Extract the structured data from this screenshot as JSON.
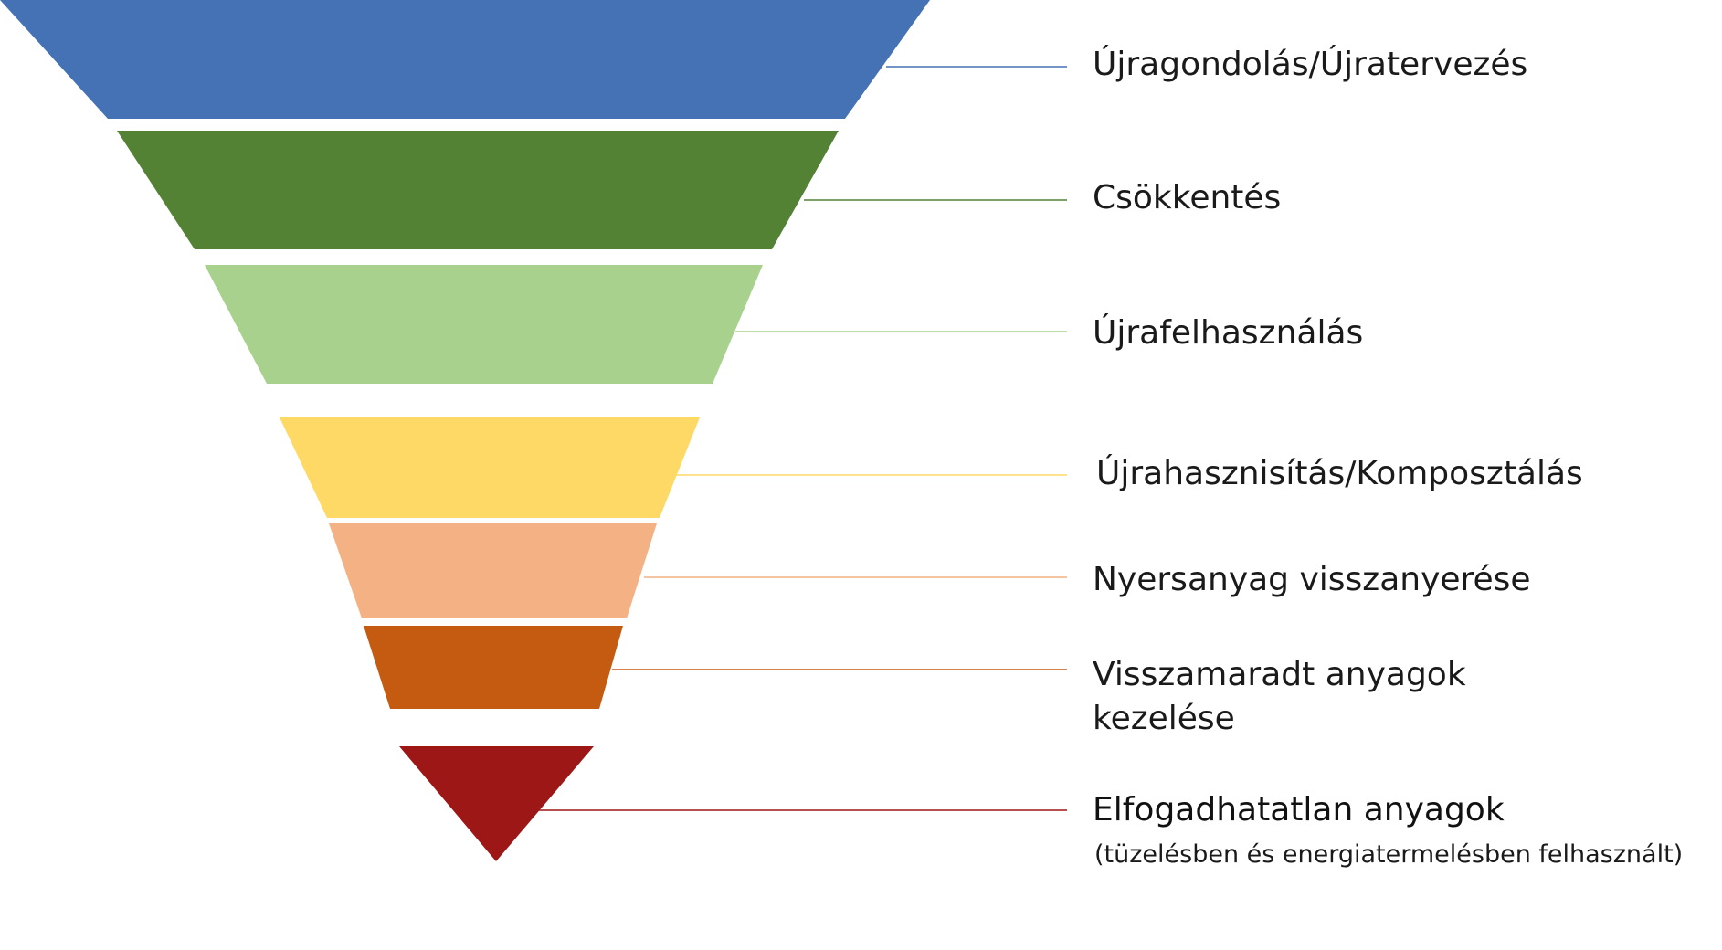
{
  "levels": [
    {
      "id": "rethink",
      "label": "Újragondolás/Újratervezés",
      "color": "#4472b4"
    },
    {
      "id": "reduce",
      "label": "Csökkentés",
      "color": "#548235"
    },
    {
      "id": "reuse",
      "label": "Újrafelhasználás",
      "color": "#a9d18e"
    },
    {
      "id": "recycle",
      "label": "Újrahasznisítás/Komposztálás",
      "color": "#ffd966"
    },
    {
      "id": "recover",
      "label": "Nyersanyag visszanyerése",
      "color": "#f4b183"
    },
    {
      "id": "residual",
      "label_line1": "Visszamaradt anyagok",
      "label_line2": "kezelése",
      "color": "#c55a11"
    },
    {
      "id": "unacceptable",
      "label": "Elfogadhatatlan anyagok",
      "sublabel": "(tüzelésben és energiatermelésben felhasznált)",
      "color": "#9e1717"
    }
  ]
}
